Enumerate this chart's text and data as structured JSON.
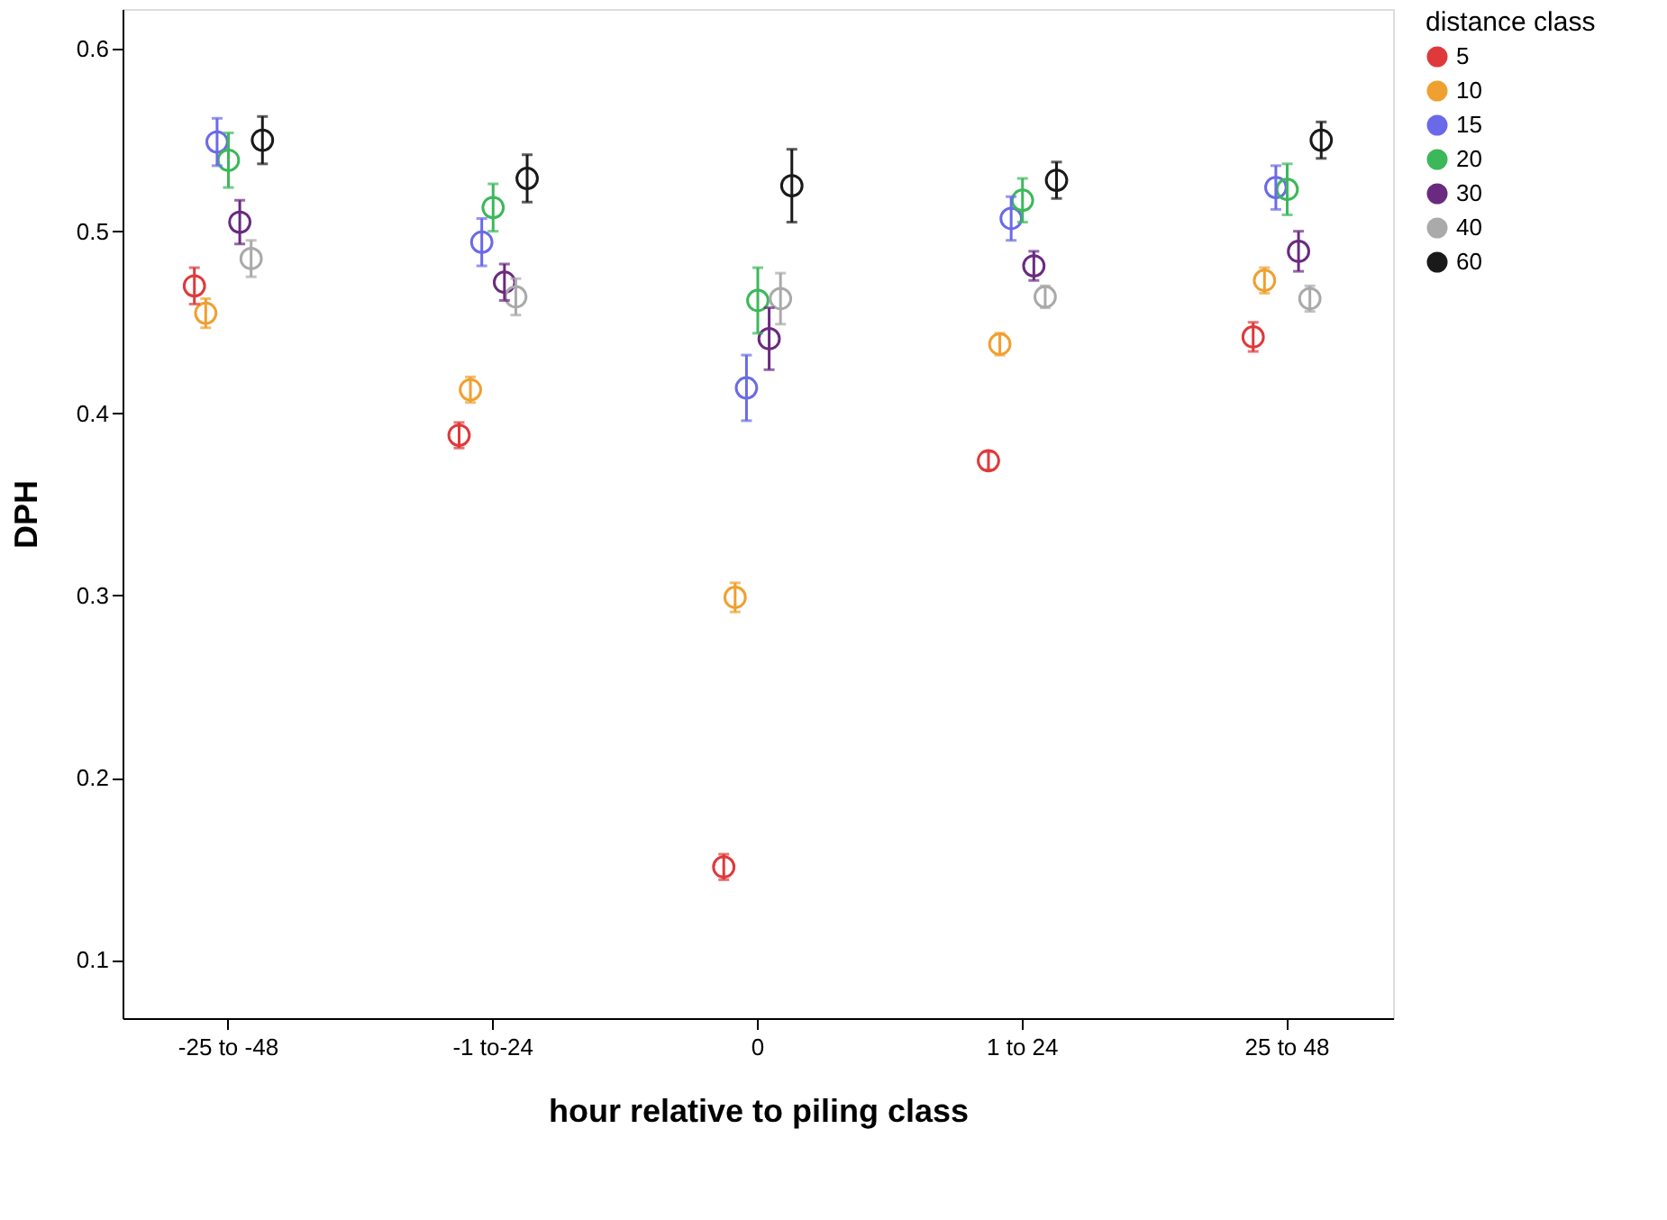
{
  "chart_data": {
    "type": "scatter",
    "xlabel": "hour relative to piling class",
    "ylabel": "DPH",
    "legend_title": "distance class",
    "legend": "right",
    "marker": "circle",
    "grid": false,
    "categories": [
      "-25 to -48",
      "-1 to-24",
      "0",
      "1 to 24",
      "25 to 48"
    ],
    "ylim": [
      0.068,
      0.622
    ],
    "yticks": [
      0.1,
      0.2,
      0.3,
      0.4,
      0.5,
      0.6
    ],
    "series": [
      {
        "name": "5",
        "color": "#e0393b",
        "values": [
          0.47,
          0.388,
          0.151,
          0.374,
          0.442
        ],
        "errors": [
          0.01,
          0.007,
          0.007,
          0.005,
          0.008
        ]
      },
      {
        "name": "10",
        "color": "#f0a030",
        "values": [
          0.455,
          0.413,
          0.299,
          0.438,
          0.473
        ],
        "errors": [
          0.008,
          0.007,
          0.008,
          0.006,
          0.007
        ]
      },
      {
        "name": "15",
        "color": "#6a6ae8",
        "values": [
          0.549,
          0.494,
          0.414,
          0.507,
          0.524
        ],
        "errors": [
          0.013,
          0.013,
          0.018,
          0.012,
          0.012
        ]
      },
      {
        "name": "20",
        "color": "#3cb85a",
        "values": [
          0.539,
          0.513,
          0.462,
          0.517,
          0.523
        ],
        "errors": [
          0.015,
          0.013,
          0.018,
          0.012,
          0.014
        ]
      },
      {
        "name": "30",
        "color": "#6a2a80",
        "values": [
          0.505,
          0.472,
          0.441,
          0.481,
          0.489
        ],
        "errors": [
          0.012,
          0.01,
          0.017,
          0.008,
          0.011
        ]
      },
      {
        "name": "40",
        "color": "#aaaaaa",
        "values": [
          0.485,
          0.464,
          0.463,
          0.464,
          0.463
        ],
        "errors": [
          0.01,
          0.01,
          0.014,
          0.006,
          0.007
        ]
      },
      {
        "name": "60",
        "color": "#1a1a1a",
        "values": [
          0.55,
          0.529,
          0.525,
          0.528,
          0.55
        ],
        "errors": [
          0.013,
          0.013,
          0.02,
          0.01,
          0.01
        ]
      }
    ]
  }
}
